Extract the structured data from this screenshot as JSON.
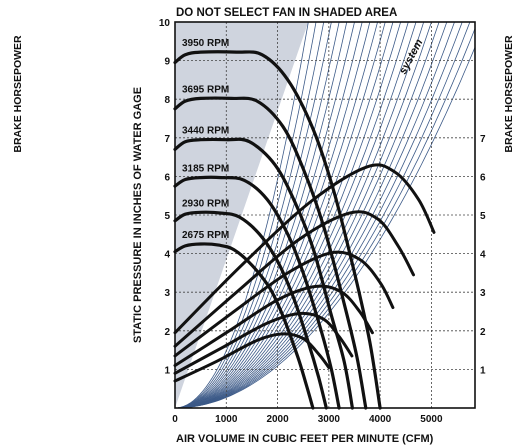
{
  "chart_data": {
    "type": "line",
    "title": "DO NOT SELECT FAN IN SHADED AREA",
    "xlabel": "AIR VOLUME IN CUBIC FEET PER MINUTE (CFM)",
    "ylabel": "STATIC PRESSURE IN INCHES OF WATER GAGE",
    "y2label_left": "BRAKE HORSEPOWER",
    "y2label_right": "BRAKE HORSEPOWER",
    "system_label": "system",
    "xlim": [
      0,
      5850
    ],
    "ylim": [
      0,
      10
    ],
    "x_ticks": [
      "0",
      "1000",
      "2000",
      "3000",
      "4000",
      "5000"
    ],
    "y_ticks": [
      "1",
      "2",
      "3",
      "4",
      "5",
      "6",
      "7",
      "8",
      "9",
      "10"
    ],
    "bhp_ticks": [
      "1",
      "2",
      "3",
      "4",
      "5",
      "6",
      "7"
    ],
    "grid": true,
    "shaded_region": {
      "meaning": "DO NOT SELECT FAN IN SHADED AREA",
      "boundary": [
        [
          0,
          0
        ],
        [
          2600,
          10
        ]
      ]
    },
    "pressure_curves": [
      {
        "label": "3950 RPM",
        "points": [
          [
            0,
            8.95
          ],
          [
            200,
            9.15
          ],
          [
            500,
            9.22
          ],
          [
            1200,
            9.22
          ],
          [
            1700,
            9.15
          ],
          [
            2200,
            8.5
          ],
          [
            2700,
            7.2
          ],
          [
            3100,
            5.6
          ],
          [
            3500,
            3.5
          ],
          [
            3800,
            1.7
          ],
          [
            4000,
            0
          ]
        ]
      },
      {
        "label": "3695 RPM",
        "points": [
          [
            0,
            7.75
          ],
          [
            200,
            7.95
          ],
          [
            500,
            8.02
          ],
          [
            1100,
            8.02
          ],
          [
            1600,
            7.95
          ],
          [
            2100,
            7.3
          ],
          [
            2500,
            6.2
          ],
          [
            2900,
            4.7
          ],
          [
            3300,
            2.7
          ],
          [
            3550,
            1.3
          ],
          [
            3720,
            0
          ]
        ]
      },
      {
        "label": "3440 RPM",
        "points": [
          [
            0,
            6.7
          ],
          [
            200,
            6.9
          ],
          [
            500,
            6.95
          ],
          [
            1000,
            6.95
          ],
          [
            1450,
            6.9
          ],
          [
            1950,
            6.3
          ],
          [
            2350,
            5.3
          ],
          [
            2700,
            4.1
          ],
          [
            3050,
            2.4
          ],
          [
            3300,
            1.2
          ],
          [
            3460,
            0
          ]
        ]
      },
      {
        "label": "3185 RPM",
        "points": [
          [
            0,
            5.75
          ],
          [
            200,
            5.92
          ],
          [
            500,
            5.97
          ],
          [
            900,
            5.97
          ],
          [
            1350,
            5.9
          ],
          [
            1800,
            5.4
          ],
          [
            2200,
            4.5
          ],
          [
            2500,
            3.5
          ],
          [
            2850,
            2.0
          ],
          [
            3050,
            1.0
          ],
          [
            3200,
            0
          ]
        ]
      },
      {
        "label": "2930 RPM",
        "points": [
          [
            0,
            4.85
          ],
          [
            200,
            5.02
          ],
          [
            500,
            5.07
          ],
          [
            900,
            5.05
          ],
          [
            1250,
            4.95
          ],
          [
            1650,
            4.5
          ],
          [
            2000,
            3.8
          ],
          [
            2300,
            2.9
          ],
          [
            2600,
            1.7
          ],
          [
            2800,
            0.8
          ],
          [
            2950,
            0
          ]
        ]
      },
      {
        "label": "2675 RPM",
        "points": [
          [
            0,
            4.05
          ],
          [
            200,
            4.2
          ],
          [
            500,
            4.25
          ],
          [
            850,
            4.22
          ],
          [
            1150,
            4.1
          ],
          [
            1500,
            3.7
          ],
          [
            1850,
            3.1
          ],
          [
            2100,
            2.4
          ],
          [
            2400,
            1.3
          ],
          [
            2560,
            0.6
          ],
          [
            2690,
            0
          ]
        ]
      }
    ],
    "bhp_curves": [
      {
        "points": [
          [
            0,
            0.7
          ],
          [
            800,
            1.2
          ],
          [
            1600,
            1.75
          ],
          [
            2100,
            1.92
          ],
          [
            2500,
            1.8
          ],
          [
            2800,
            1.4
          ],
          [
            3000,
            1.05
          ]
        ]
      },
      {
        "points": [
          [
            0,
            0.9
          ],
          [
            900,
            1.55
          ],
          [
            1800,
            2.2
          ],
          [
            2450,
            2.45
          ],
          [
            2900,
            2.3
          ],
          [
            3200,
            1.85
          ],
          [
            3450,
            1.35
          ]
        ]
      },
      {
        "points": [
          [
            0,
            1.1
          ],
          [
            1000,
            1.95
          ],
          [
            2000,
            2.8
          ],
          [
            2750,
            3.15
          ],
          [
            3250,
            3.0
          ],
          [
            3600,
            2.5
          ],
          [
            3850,
            1.95
          ]
        ]
      },
      {
        "points": [
          [
            0,
            1.35
          ],
          [
            1100,
            2.45
          ],
          [
            2200,
            3.5
          ],
          [
            3050,
            4.02
          ],
          [
            3600,
            3.85
          ],
          [
            4000,
            3.25
          ],
          [
            4250,
            2.6
          ]
        ]
      },
      {
        "points": [
          [
            0,
            1.6
          ],
          [
            1200,
            3.0
          ],
          [
            2400,
            4.35
          ],
          [
            3400,
            5.05
          ],
          [
            3950,
            4.9
          ],
          [
            4350,
            4.2
          ],
          [
            4650,
            3.45
          ]
        ]
      },
      {
        "points": [
          [
            0,
            1.95
          ],
          [
            1300,
            3.7
          ],
          [
            2650,
            5.35
          ],
          [
            3750,
            6.25
          ],
          [
            4300,
            6.1
          ],
          [
            4750,
            5.4
          ],
          [
            5050,
            4.55
          ]
        ]
      }
    ]
  }
}
